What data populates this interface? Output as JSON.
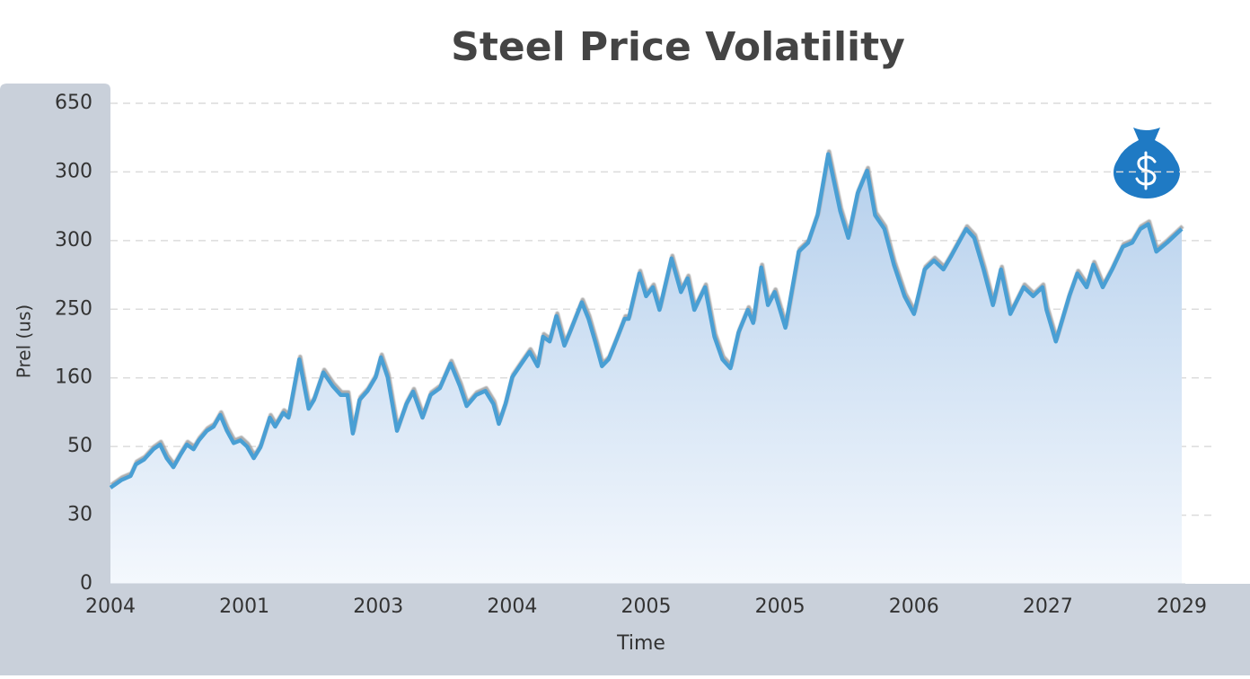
{
  "chart_data": {
    "type": "area-line",
    "title": "Steel Price Volatility",
    "ylabel": "Prel (us)",
    "xlabel": "Time",
    "color": "#4a9fd4",
    "grid": true,
    "xlim": [
      0,
      8
    ],
    "ylim": [
      0,
      7
    ],
    "xticks": [
      {
        "value": 0,
        "label": "2004"
      },
      {
        "value": 1,
        "label": "2001"
      },
      {
        "value": 2,
        "label": "2003"
      },
      {
        "value": 3,
        "label": "2004"
      },
      {
        "value": 4,
        "label": "2005"
      },
      {
        "value": 5,
        "label": "2005"
      },
      {
        "value": 6,
        "label": "2006"
      },
      {
        "value": 7,
        "label": "2027"
      },
      {
        "value": 8,
        "label": "2029"
      }
    ],
    "yticks": [
      {
        "value": 0,
        "label": "0"
      },
      {
        "value": 1,
        "label": "30"
      },
      {
        "value": 2,
        "label": "50"
      },
      {
        "value": 3,
        "label": "160"
      },
      {
        "value": 4,
        "label": "250"
      },
      {
        "value": 5,
        "label": "300"
      },
      {
        "value": 6,
        "label": "300"
      },
      {
        "value": 7,
        "label": "650"
      }
    ],
    "x": [
      0,
      0.08,
      0.15,
      0.19,
      0.25,
      0.32,
      0.37,
      0.42,
      0.47,
      0.52,
      0.57,
      0.62,
      0.66,
      0.72,
      0.77,
      0.82,
      0.87,
      0.92,
      0.97,
      1.02,
      1.07,
      1.12,
      1.19,
      1.23,
      1.29,
      1.33,
      1.41,
      1.48,
      1.52,
      1.59,
      1.66,
      1.72,
      1.77,
      1.81,
      1.86,
      1.92,
      1.98,
      2.02,
      2.07,
      2.14,
      2.21,
      2.26,
      2.33,
      2.39,
      2.46,
      2.54,
      2.61,
      2.66,
      2.73,
      2.8,
      2.86,
      2.9,
      2.95,
      3.0,
      3.07,
      3.13,
      3.19,
      3.23,
      3.28,
      3.33,
      3.39,
      3.43,
      3.52,
      3.57,
      3.62,
      3.67,
      3.72,
      3.78,
      3.84,
      3.87,
      3.95,
      4.0,
      4.05,
      4.1,
      4.19,
      4.26,
      4.31,
      4.36,
      4.44,
      4.51,
      4.57,
      4.63,
      4.69,
      4.76,
      4.8,
      4.86,
      4.91,
      4.96,
      5.04,
      5.14,
      5.21,
      5.28,
      5.36,
      5.45,
      5.51,
      5.58,
      5.65,
      5.71,
      5.78,
      5.85,
      5.93,
      6.0,
      6.08,
      6.15,
      6.22,
      6.28,
      6.39,
      6.45,
      6.52,
      6.59,
      6.65,
      6.72,
      6.82,
      6.89,
      6.96,
      6.99,
      7.06,
      7.16,
      7.22,
      7.29,
      7.34,
      7.41,
      7.48,
      7.56,
      7.63,
      7.69,
      7.75,
      7.81,
      7.89,
      8.0
    ],
    "values": [
      1.4,
      1.51,
      1.57,
      1.74,
      1.81,
      1.96,
      2.03,
      1.83,
      1.7,
      1.87,
      2.03,
      1.96,
      2.09,
      2.23,
      2.29,
      2.46,
      2.23,
      2.05,
      2.09,
      2.0,
      1.83,
      1.99,
      2.42,
      2.29,
      2.49,
      2.42,
      3.27,
      2.55,
      2.68,
      3.08,
      2.88,
      2.75,
      2.75,
      2.19,
      2.68,
      2.81,
      3.01,
      3.3,
      3.01,
      2.23,
      2.62,
      2.8,
      2.42,
      2.75,
      2.85,
      3.21,
      2.88,
      2.59,
      2.75,
      2.81,
      2.62,
      2.33,
      2.62,
      3.01,
      3.21,
      3.38,
      3.17,
      3.6,
      3.53,
      3.9,
      3.47,
      3.66,
      4.1,
      3.86,
      3.53,
      3.17,
      3.27,
      3.56,
      3.86,
      3.86,
      4.52,
      4.19,
      4.32,
      3.99,
      4.74,
      4.25,
      4.45,
      3.99,
      4.32,
      3.6,
      3.27,
      3.14,
      3.66,
      3.99,
      3.8,
      4.61,
      4.06,
      4.25,
      3.73,
      4.84,
      4.97,
      5.37,
      6.26,
      5.43,
      5.04,
      5.69,
      6.02,
      5.37,
      5.17,
      4.65,
      4.19,
      3.93,
      4.58,
      4.71,
      4.58,
      4.78,
      5.17,
      5.04,
      4.58,
      4.06,
      4.58,
      3.93,
      4.32,
      4.19,
      4.32,
      3.99,
      3.53,
      4.19,
      4.52,
      4.32,
      4.65,
      4.32,
      4.58,
      4.91,
      4.97,
      5.17,
      5.24,
      4.84,
      4.97,
      5.17
    ]
  }
}
